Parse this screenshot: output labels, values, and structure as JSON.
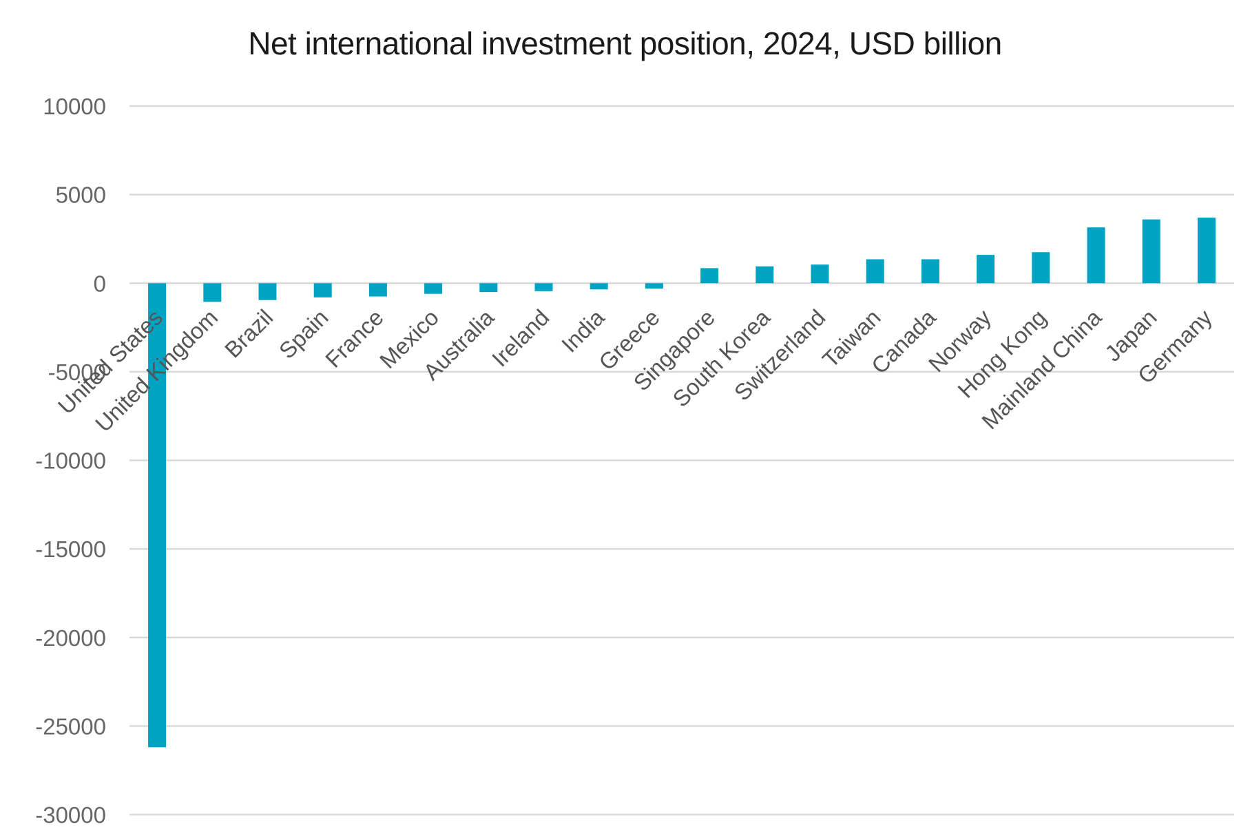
{
  "chart_data": {
    "type": "bar",
    "title": "Net international investment position, 2024, USD billion",
    "xlabel": "",
    "ylabel": "",
    "ylim": [
      -30000,
      10000
    ],
    "yticks": [
      10000,
      5000,
      0,
      -5000,
      -10000,
      -15000,
      -20000,
      -25000,
      -30000
    ],
    "grid": true,
    "legend": "none",
    "bar_color": "#00a3c1",
    "categories": [
      "United States",
      "United Kingdom",
      "Brazil",
      "Spain",
      "France",
      "Mexico",
      "Australia",
      "Ireland",
      "India",
      "Greece",
      "Singapore",
      "South Korea",
      "Switzerland",
      "Taiwan",
      "Canada",
      "Norway",
      "Hong Kong",
      "Mainland China",
      "Japan",
      "Germany"
    ],
    "values": [
      -26200,
      -1050,
      -950,
      -800,
      -750,
      -600,
      -500,
      -450,
      -350,
      -300,
      850,
      950,
      1050,
      1350,
      1350,
      1600,
      1750,
      3150,
      3600,
      3700
    ]
  }
}
